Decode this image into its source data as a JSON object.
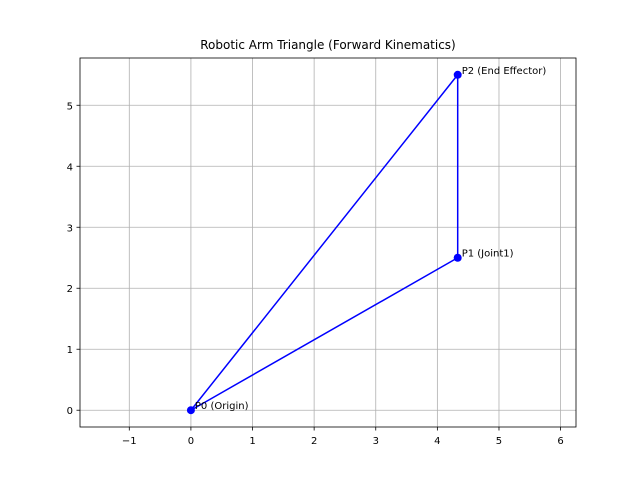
{
  "chart_data": {
    "type": "line",
    "title": "Robotic Arm Triangle (Forward Kinematics)",
    "xlabel": "",
    "ylabel": "",
    "xlim": [
      -1.8,
      6.25
    ],
    "ylim": [
      -0.275,
      5.775
    ],
    "xticks": [
      -1,
      0,
      1,
      2,
      3,
      4,
      5,
      6
    ],
    "yticks": [
      0,
      1,
      2,
      3,
      4,
      5
    ],
    "xtick_labels": [
      "−1",
      "0",
      "1",
      "2",
      "3",
      "4",
      "5",
      "6"
    ],
    "ytick_labels": [
      "0",
      "1",
      "2",
      "3",
      "4",
      "5"
    ],
    "grid": true,
    "color": "#0000ff",
    "points": [
      {
        "x": 0,
        "y": 0,
        "label": "P0 (Origin)"
      },
      {
        "x": 4.33,
        "y": 2.5,
        "label": "P1 (Joint1)"
      },
      {
        "x": 4.33,
        "y": 5.5,
        "label": "P2 (End Effector)"
      }
    ],
    "path_order": [
      0,
      1,
      2,
      0
    ]
  }
}
